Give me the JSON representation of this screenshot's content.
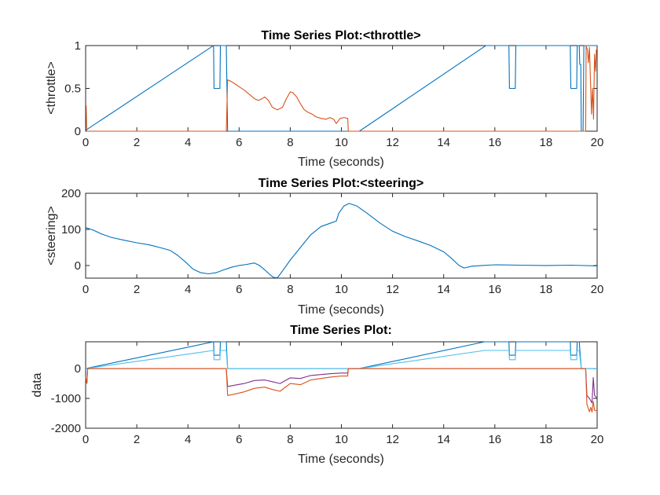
{
  "chart_data": [
    {
      "type": "line",
      "title": "Time Series Plot:<throttle>",
      "xlabel": "Time (seconds)",
      "ylabel": "<throttle>",
      "xlim": [
        0,
        20
      ],
      "ylim": [
        0,
        1
      ],
      "xticks": [
        0,
        2,
        4,
        6,
        8,
        10,
        12,
        14,
        16,
        18,
        20
      ],
      "yticks": [
        0,
        0.5,
        1
      ],
      "xtick_labels": [
        "0",
        "2",
        "4",
        "6",
        "8",
        "10",
        "12",
        "14",
        "16",
        "18",
        "20"
      ],
      "ytick_labels": [
        "0",
        "0.5",
        "1"
      ],
      "grid": false,
      "series": [
        {
          "color": "#0072BD",
          "points": [
            [
              0,
              0
            ],
            [
              0.05,
              0.02
            ],
            [
              4.95,
              0.99
            ],
            [
              5.0,
              1
            ],
            [
              5.02,
              0.5
            ],
            [
              5.25,
              0.5
            ],
            [
              5.27,
              1
            ],
            [
              5.5,
              1
            ],
            [
              5.55,
              0
            ],
            [
              10.7,
              0
            ],
            [
              15.6,
              0.99
            ],
            [
              15.65,
              1
            ],
            [
              16.55,
              1
            ],
            [
              16.57,
              0.5
            ],
            [
              16.8,
              0.5
            ],
            [
              16.82,
              1
            ],
            [
              18.95,
              1
            ],
            [
              18.97,
              0.5
            ],
            [
              19.2,
              0.5
            ],
            [
              19.22,
              1
            ],
            [
              19.3,
              1
            ],
            [
              19.32,
              0.78
            ],
            [
              19.36,
              0.78
            ],
            [
              19.38,
              0
            ],
            [
              19.45,
              0
            ],
            [
              19.48,
              1
            ],
            [
              20,
              1
            ]
          ]
        },
        {
          "color": "#D95319",
          "points": [
            [
              0,
              0.3
            ],
            [
              0.02,
              0.3
            ],
            [
              0.04,
              0
            ],
            [
              5.5,
              0
            ],
            [
              5.55,
              0.6
            ],
            [
              5.7,
              0.58
            ],
            [
              5.85,
              0.55
            ],
            [
              6.0,
              0.52
            ],
            [
              6.2,
              0.48
            ],
            [
              6.4,
              0.43
            ],
            [
              6.6,
              0.38
            ],
            [
              6.75,
              0.36
            ],
            [
              6.9,
              0.38
            ],
            [
              7.0,
              0.4
            ],
            [
              7.15,
              0.36
            ],
            [
              7.3,
              0.28
            ],
            [
              7.5,
              0.25
            ],
            [
              7.7,
              0.28
            ],
            [
              7.85,
              0.38
            ],
            [
              8.0,
              0.46
            ],
            [
              8.1,
              0.45
            ],
            [
              8.25,
              0.4
            ],
            [
              8.4,
              0.32
            ],
            [
              8.55,
              0.25
            ],
            [
              8.7,
              0.22
            ],
            [
              8.85,
              0.2
            ],
            [
              9.0,
              0.17
            ],
            [
              9.2,
              0.15
            ],
            [
              9.4,
              0.14
            ],
            [
              9.55,
              0.16
            ],
            [
              9.7,
              0.14
            ],
            [
              9.8,
              0.09
            ],
            [
              9.95,
              0.15
            ],
            [
              10.1,
              0.16
            ],
            [
              10.25,
              0.15
            ],
            [
              10.27,
              0
            ],
            [
              19.55,
              0
            ],
            [
              19.57,
              1
            ],
            [
              19.62,
              0.95
            ],
            [
              19.66,
              0.8
            ],
            [
              19.7,
              0.98
            ],
            [
              19.74,
              0.6
            ],
            [
              19.78,
              0.2
            ],
            [
              19.82,
              0.5
            ],
            [
              19.86,
              0.14
            ],
            [
              19.9,
              0.9
            ],
            [
              19.94,
              0.7
            ],
            [
              19.97,
              0.95
            ],
            [
              20,
              0.96
            ]
          ]
        }
      ]
    },
    {
      "type": "line",
      "title": "Time Series Plot:<steering>",
      "xlabel": "Time (seconds)",
      "ylabel": "<steering>",
      "xlim": [
        0,
        20
      ],
      "ylim": [
        -35,
        200
      ],
      "xticks": [
        0,
        2,
        4,
        6,
        8,
        10,
        12,
        14,
        16,
        18,
        20
      ],
      "yticks": [
        0,
        100,
        200
      ],
      "xtick_labels": [
        "0",
        "2",
        "4",
        "6",
        "8",
        "10",
        "12",
        "14",
        "16",
        "18",
        "20"
      ],
      "ytick_labels": [
        "0",
        "100",
        "200"
      ],
      "grid": false,
      "series": [
        {
          "color": "#0072BD",
          "points": [
            [
              0,
              105
            ],
            [
              0.3,
              98
            ],
            [
              0.6,
              88
            ],
            [
              1,
              78
            ],
            [
              1.5,
              70
            ],
            [
              2,
              63
            ],
            [
              2.5,
              57
            ],
            [
              3,
              48
            ],
            [
              3.3,
              42
            ],
            [
              3.6,
              28
            ],
            [
              3.9,
              10
            ],
            [
              4.2,
              -10
            ],
            [
              4.5,
              -20
            ],
            [
              4.8,
              -23
            ],
            [
              5.1,
              -20
            ],
            [
              5.4,
              -12
            ],
            [
              5.7,
              -5
            ],
            [
              6.0,
              0
            ],
            [
              6.3,
              3
            ],
            [
              6.6,
              7
            ],
            [
              6.8,
              0
            ],
            [
              7.0,
              -12
            ],
            [
              7.2,
              -25
            ],
            [
              7.35,
              -33
            ],
            [
              7.5,
              -34
            ],
            [
              7.7,
              -15
            ],
            [
              8.0,
              15
            ],
            [
              8.4,
              50
            ],
            [
              8.8,
              85
            ],
            [
              9.2,
              108
            ],
            [
              9.6,
              118
            ],
            [
              9.8,
              123
            ],
            [
              9.9,
              145
            ],
            [
              10.1,
              165
            ],
            [
              10.3,
              172
            ],
            [
              10.6,
              165
            ],
            [
              11,
              145
            ],
            [
              11.5,
              118
            ],
            [
              12,
              95
            ],
            [
              12.5,
              80
            ],
            [
              13,
              68
            ],
            [
              13.5,
              55
            ],
            [
              14,
              38
            ],
            [
              14.3,
              20
            ],
            [
              14.6,
              0
            ],
            [
              14.8,
              -7
            ],
            [
              15.1,
              -2
            ],
            [
              15.5,
              0
            ],
            [
              16,
              2
            ],
            [
              17,
              1
            ],
            [
              18,
              0
            ],
            [
              19,
              1
            ],
            [
              20,
              -1
            ]
          ]
        }
      ]
    },
    {
      "type": "line",
      "title": "Time Series Plot:",
      "xlabel": "Time (seconds)",
      "ylabel": "data",
      "xlim": [
        0,
        20
      ],
      "ylim": [
        -2000,
        900
      ],
      "xticks": [
        0,
        2,
        4,
        6,
        8,
        10,
        12,
        14,
        16,
        18,
        20
      ],
      "yticks": [
        -2000,
        -1000,
        0
      ],
      "xtick_labels": [
        "0",
        "2",
        "4",
        "6",
        "8",
        "10",
        "12",
        "14",
        "16",
        "18",
        "20"
      ],
      "ytick_labels": [
        "-2000",
        "-1000",
        "0"
      ],
      "grid": false,
      "series": [
        {
          "color": "#0072BD",
          "points": [
            [
              0,
              0
            ],
            [
              5.0,
              900
            ],
            [
              5.02,
              450
            ],
            [
              5.25,
              450
            ],
            [
              5.27,
              900
            ],
            [
              5.5,
              900
            ],
            [
              5.55,
              0
            ],
            [
              10.7,
              0
            ],
            [
              15.6,
              900
            ],
            [
              16.55,
              900
            ],
            [
              16.57,
              450
            ],
            [
              16.8,
              450
            ],
            [
              16.82,
              900
            ],
            [
              18.95,
              900
            ],
            [
              18.97,
              450
            ],
            [
              19.2,
              450
            ],
            [
              19.22,
              900
            ],
            [
              19.3,
              900
            ],
            [
              19.38,
              0
            ],
            [
              20,
              0
            ]
          ]
        },
        {
          "color": "#4DBEEE",
          "points": [
            [
              0,
              0
            ],
            [
              5.0,
              610
            ],
            [
              5.02,
              300
            ],
            [
              5.25,
              300
            ],
            [
              5.27,
              610
            ],
            [
              5.5,
              610
            ],
            [
              5.55,
              0
            ],
            [
              10.7,
              0
            ],
            [
              15.6,
              610
            ],
            [
              16.55,
              610
            ],
            [
              16.57,
              300
            ],
            [
              16.8,
              300
            ],
            [
              16.82,
              610
            ],
            [
              18.95,
              610
            ],
            [
              18.97,
              300
            ],
            [
              19.2,
              300
            ],
            [
              19.22,
              610
            ],
            [
              19.3,
              610
            ],
            [
              19.38,
              0
            ],
            [
              20,
              0
            ]
          ]
        },
        {
          "color": "#7E2F8E",
          "points": [
            [
              0,
              -280
            ],
            [
              0.05,
              -480
            ],
            [
              0.08,
              0
            ],
            [
              5.5,
              0
            ],
            [
              5.55,
              -600
            ],
            [
              5.8,
              -560
            ],
            [
              6.2,
              -500
            ],
            [
              6.6,
              -400
            ],
            [
              7.0,
              -380
            ],
            [
              7.3,
              -440
            ],
            [
              7.6,
              -500
            ],
            [
              8.0,
              -310
            ],
            [
              8.4,
              -330
            ],
            [
              8.8,
              -230
            ],
            [
              9.2,
              -200
            ],
            [
              9.6,
              -170
            ],
            [
              10.0,
              -150
            ],
            [
              10.25,
              -150
            ],
            [
              10.27,
              0
            ],
            [
              19.55,
              0
            ],
            [
              19.6,
              -900
            ],
            [
              19.7,
              -1000
            ],
            [
              19.8,
              -1150
            ],
            [
              19.85,
              -300
            ],
            [
              19.9,
              -900
            ],
            [
              20,
              -1000
            ]
          ]
        },
        {
          "color": "#D95319",
          "points": [
            [
              0,
              -300
            ],
            [
              0.05,
              -500
            ],
            [
              0.08,
              0
            ],
            [
              5.5,
              0
            ],
            [
              5.55,
              -900
            ],
            [
              5.8,
              -860
            ],
            [
              6.2,
              -780
            ],
            [
              6.6,
              -660
            ],
            [
              7.0,
              -620
            ],
            [
              7.3,
              -700
            ],
            [
              7.6,
              -760
            ],
            [
              8.0,
              -500
            ],
            [
              8.4,
              -540
            ],
            [
              8.8,
              -380
            ],
            [
              9.2,
              -330
            ],
            [
              9.6,
              -280
            ],
            [
              10.0,
              -250
            ],
            [
              10.25,
              -250
            ],
            [
              10.27,
              0
            ],
            [
              19.55,
              0
            ],
            [
              19.6,
              -1200
            ],
            [
              19.7,
              -1450
            ],
            [
              19.75,
              -1300
            ],
            [
              19.8,
              -1460
            ],
            [
              19.85,
              -1100
            ],
            [
              19.9,
              -1400
            ],
            [
              20,
              -1420
            ]
          ]
        }
      ]
    }
  ]
}
